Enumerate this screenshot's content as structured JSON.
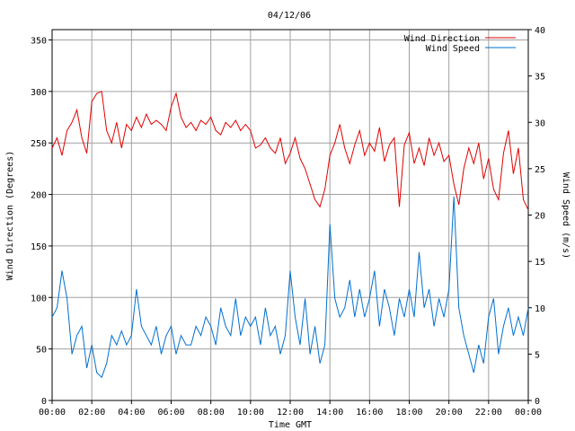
{
  "chart_data": {
    "type": "line",
    "title": "04/12/06",
    "xlabel": "Time GMT",
    "ylabel_left": "Wind Direction (Degrees)",
    "ylabel_right": "Wind Speed (m/s)",
    "x_ticks": [
      "00:00",
      "02:00",
      "04:00",
      "06:00",
      "08:00",
      "10:00",
      "12:00",
      "14:00",
      "16:00",
      "18:00",
      "20:00",
      "22:00",
      "00:00"
    ],
    "ylim_left": [
      0,
      360
    ],
    "yticks_left": [
      0,
      50,
      100,
      150,
      200,
      250,
      300,
      350
    ],
    "ylim_right": [
      0,
      40
    ],
    "yticks_right": [
      0,
      5,
      10,
      15,
      20,
      25,
      30,
      35,
      40
    ],
    "x_range_hours": [
      0,
      24
    ],
    "grid": true,
    "legend_position": "top-right",
    "series": [
      {
        "name": "Wind Direction",
        "axis": "left",
        "color": "#e00000",
        "points": [
          [
            0.0,
            245
          ],
          [
            0.25,
            255
          ],
          [
            0.5,
            238
          ],
          [
            0.75,
            262
          ],
          [
            1.0,
            270
          ],
          [
            1.25,
            282
          ],
          [
            1.5,
            255
          ],
          [
            1.75,
            240
          ],
          [
            2.0,
            290
          ],
          [
            2.25,
            298
          ],
          [
            2.5,
            300
          ],
          [
            2.75,
            262
          ],
          [
            3.0,
            250
          ],
          [
            3.25,
            270
          ],
          [
            3.5,
            245
          ],
          [
            3.75,
            268
          ],
          [
            4.0,
            262
          ],
          [
            4.25,
            275
          ],
          [
            4.5,
            265
          ],
          [
            4.75,
            278
          ],
          [
            5.0,
            268
          ],
          [
            5.25,
            272
          ],
          [
            5.5,
            268
          ],
          [
            5.75,
            262
          ],
          [
            6.0,
            285
          ],
          [
            6.25,
            298
          ],
          [
            6.5,
            275
          ],
          [
            6.75,
            265
          ],
          [
            7.0,
            270
          ],
          [
            7.25,
            262
          ],
          [
            7.5,
            272
          ],
          [
            7.75,
            268
          ],
          [
            8.0,
            275
          ],
          [
            8.25,
            262
          ],
          [
            8.5,
            258
          ],
          [
            8.75,
            270
          ],
          [
            9.0,
            265
          ],
          [
            9.25,
            272
          ],
          [
            9.5,
            262
          ],
          [
            9.75,
            268
          ],
          [
            10.0,
            262
          ],
          [
            10.25,
            245
          ],
          [
            10.5,
            248
          ],
          [
            10.75,
            255
          ],
          [
            11.0,
            245
          ],
          [
            11.25,
            240
          ],
          [
            11.5,
            255
          ],
          [
            11.75,
            230
          ],
          [
            12.0,
            240
          ],
          [
            12.25,
            255
          ],
          [
            12.5,
            235
          ],
          [
            12.75,
            225
          ],
          [
            13.0,
            210
          ],
          [
            13.25,
            195
          ],
          [
            13.5,
            188
          ],
          [
            13.75,
            205
          ],
          [
            14.0,
            238
          ],
          [
            14.25,
            250
          ],
          [
            14.5,
            268
          ],
          [
            14.75,
            245
          ],
          [
            15.0,
            230
          ],
          [
            15.25,
            248
          ],
          [
            15.5,
            262
          ],
          [
            15.75,
            238
          ],
          [
            16.0,
            250
          ],
          [
            16.25,
            242
          ],
          [
            16.5,
            265
          ],
          [
            16.75,
            232
          ],
          [
            17.0,
            248
          ],
          [
            17.25,
            255
          ],
          [
            17.5,
            188
          ],
          [
            17.75,
            248
          ],
          [
            18.0,
            260
          ],
          [
            18.25,
            230
          ],
          [
            18.5,
            245
          ],
          [
            18.75,
            228
          ],
          [
            19.0,
            255
          ],
          [
            19.25,
            238
          ],
          [
            19.5,
            250
          ],
          [
            19.75,
            232
          ],
          [
            20.0,
            238
          ],
          [
            20.25,
            210
          ],
          [
            20.5,
            190
          ],
          [
            20.75,
            225
          ],
          [
            21.0,
            245
          ],
          [
            21.25,
            230
          ],
          [
            21.5,
            250
          ],
          [
            21.75,
            215
          ],
          [
            22.0,
            235
          ],
          [
            22.25,
            205
          ],
          [
            22.5,
            195
          ],
          [
            22.75,
            240
          ],
          [
            23.0,
            262
          ],
          [
            23.25,
            220
          ],
          [
            23.5,
            245
          ],
          [
            23.75,
            195
          ],
          [
            24.0,
            185
          ]
        ]
      },
      {
        "name": "Wind Speed",
        "axis": "right",
        "color": "#0070d0",
        "points": [
          [
            0.0,
            9
          ],
          [
            0.25,
            10
          ],
          [
            0.5,
            14
          ],
          [
            0.75,
            11
          ],
          [
            1.0,
            5
          ],
          [
            1.25,
            7
          ],
          [
            1.5,
            8
          ],
          [
            1.75,
            3.5
          ],
          [
            2.0,
            6
          ],
          [
            2.25,
            3
          ],
          [
            2.5,
            2.5
          ],
          [
            2.75,
            4
          ],
          [
            3.0,
            7
          ],
          [
            3.25,
            6
          ],
          [
            3.5,
            7.5
          ],
          [
            3.75,
            6
          ],
          [
            4.0,
            7
          ],
          [
            4.25,
            12
          ],
          [
            4.5,
            8
          ],
          [
            4.75,
            7
          ],
          [
            5.0,
            6
          ],
          [
            5.25,
            8
          ],
          [
            5.5,
            5
          ],
          [
            5.75,
            7
          ],
          [
            6.0,
            8
          ],
          [
            6.25,
            5
          ],
          [
            6.5,
            7
          ],
          [
            6.75,
            6
          ],
          [
            7.0,
            6
          ],
          [
            7.25,
            8
          ],
          [
            7.5,
            7
          ],
          [
            7.75,
            9
          ],
          [
            8.0,
            8
          ],
          [
            8.25,
            6
          ],
          [
            8.5,
            10
          ],
          [
            8.75,
            8
          ],
          [
            9.0,
            7
          ],
          [
            9.25,
            11
          ],
          [
            9.5,
            7
          ],
          [
            9.75,
            9
          ],
          [
            10.0,
            8
          ],
          [
            10.25,
            9
          ],
          [
            10.5,
            6
          ],
          [
            10.75,
            10
          ],
          [
            11.0,
            7
          ],
          [
            11.25,
            8
          ],
          [
            11.5,
            5
          ],
          [
            11.75,
            7
          ],
          [
            12.0,
            14
          ],
          [
            12.25,
            9
          ],
          [
            12.5,
            6
          ],
          [
            12.75,
            11
          ],
          [
            13.0,
            5
          ],
          [
            13.25,
            8
          ],
          [
            13.5,
            4
          ],
          [
            13.75,
            6
          ],
          [
            14.0,
            19
          ],
          [
            14.25,
            11
          ],
          [
            14.5,
            9
          ],
          [
            14.75,
            10
          ],
          [
            15.0,
            13
          ],
          [
            15.25,
            9
          ],
          [
            15.5,
            12
          ],
          [
            15.75,
            9
          ],
          [
            16.0,
            11
          ],
          [
            16.25,
            14
          ],
          [
            16.5,
            8
          ],
          [
            16.75,
            12
          ],
          [
            17.0,
            10
          ],
          [
            17.25,
            7
          ],
          [
            17.5,
            11
          ],
          [
            17.75,
            9
          ],
          [
            18.0,
            12
          ],
          [
            18.25,
            9
          ],
          [
            18.5,
            16
          ],
          [
            18.75,
            10
          ],
          [
            19.0,
            12
          ],
          [
            19.25,
            8
          ],
          [
            19.5,
            11
          ],
          [
            19.75,
            9
          ],
          [
            20.0,
            12
          ],
          [
            20.25,
            22
          ],
          [
            20.5,
            10
          ],
          [
            20.75,
            7
          ],
          [
            21.0,
            5
          ],
          [
            21.25,
            3
          ],
          [
            21.5,
            6
          ],
          [
            21.75,
            4
          ],
          [
            22.0,
            9
          ],
          [
            22.25,
            11
          ],
          [
            22.5,
            5
          ],
          [
            22.75,
            8
          ],
          [
            23.0,
            10
          ],
          [
            23.25,
            7
          ],
          [
            23.5,
            9
          ],
          [
            23.75,
            7
          ],
          [
            24.0,
            10
          ]
        ]
      }
    ]
  }
}
